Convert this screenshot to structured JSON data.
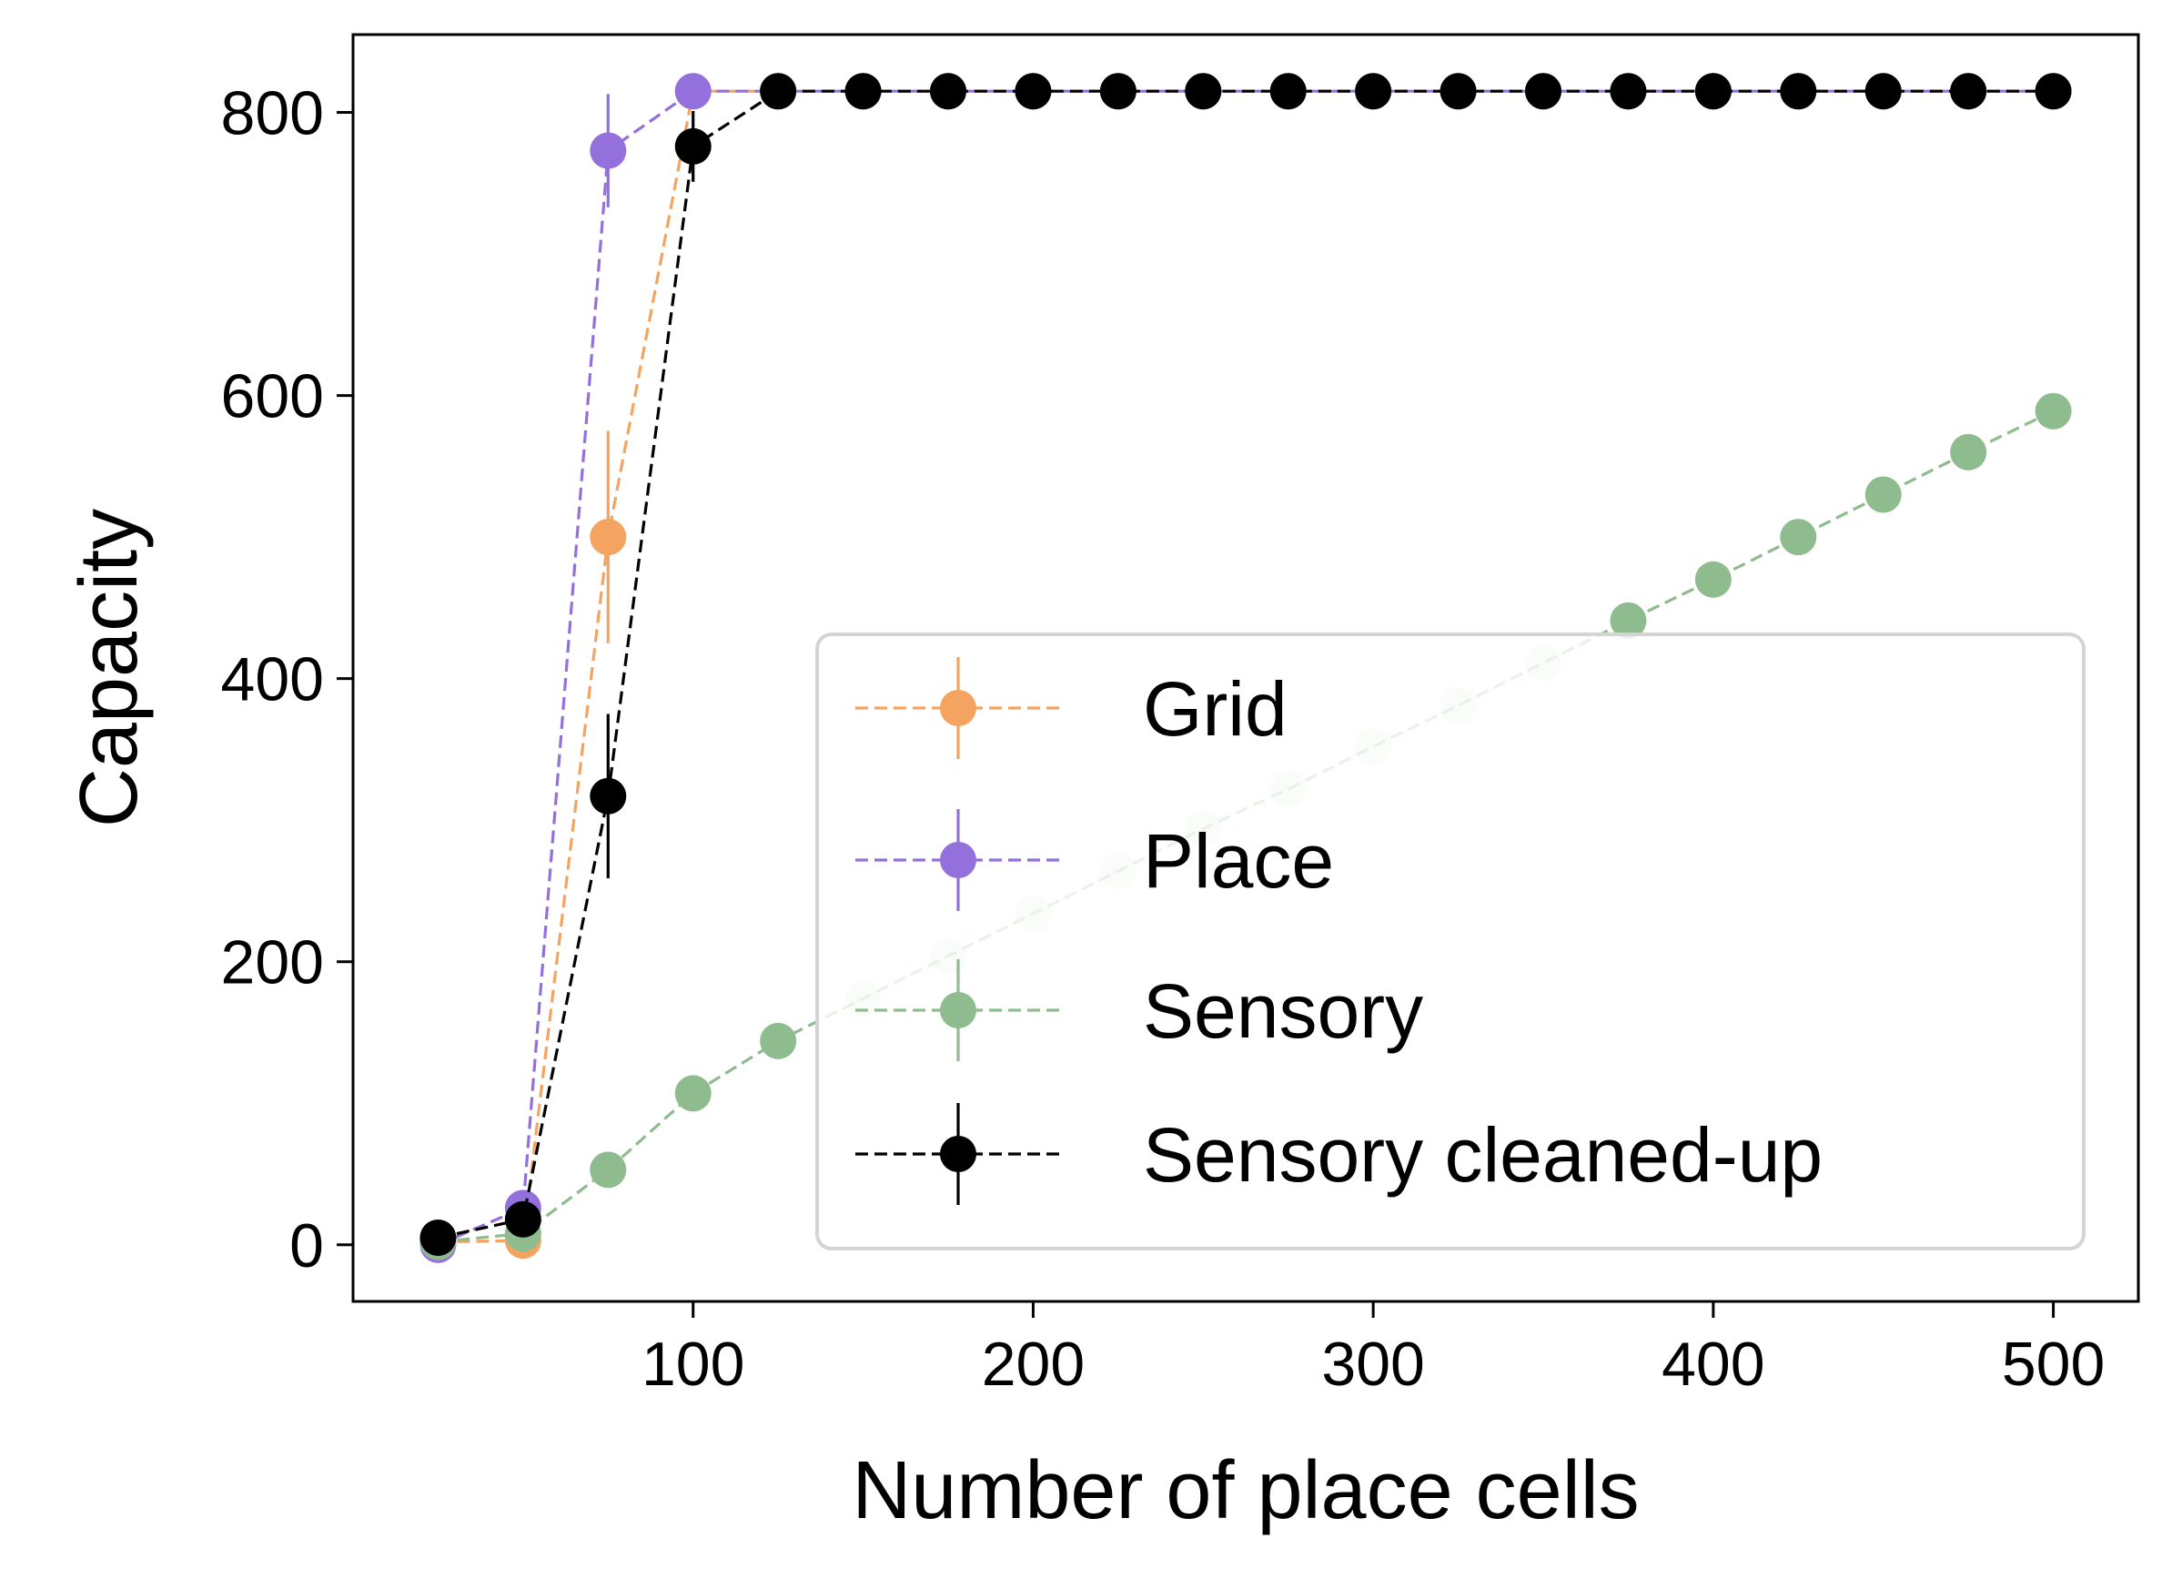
{
  "chart_data": {
    "type": "line",
    "title": "",
    "xlabel": "Number of place cells",
    "ylabel": "Capacity",
    "xlim": [
      0,
      525
    ],
    "ylim": [
      -40,
      855
    ],
    "xticks": [
      100,
      200,
      300,
      400,
      500
    ],
    "yticks": [
      0,
      200,
      400,
      600,
      800
    ],
    "grid": false,
    "legend_position": "lower-right",
    "series": [
      {
        "name": "Grid",
        "color": "#F4A460",
        "x": [
          25,
          50,
          75,
          100,
          125,
          150,
          175,
          200,
          225,
          250,
          275,
          300,
          325,
          350,
          375,
          400,
          425,
          450,
          475,
          500
        ],
        "y": [
          2,
          3,
          500,
          815,
          815,
          815,
          815,
          815,
          815,
          815,
          815,
          815,
          815,
          815,
          815,
          815,
          815,
          815,
          815,
          815
        ],
        "err": [
          0,
          0,
          75,
          0,
          0,
          0,
          0,
          0,
          0,
          0,
          0,
          0,
          0,
          0,
          0,
          0,
          0,
          0,
          0,
          0
        ]
      },
      {
        "name": "Place",
        "color": "#9370DB",
        "x": [
          25,
          50,
          75,
          100,
          125,
          150,
          175,
          200,
          225,
          250,
          275,
          300,
          325,
          350,
          375,
          400,
          425,
          450,
          475,
          500
        ],
        "y": [
          0,
          26,
          773,
          815,
          815,
          815,
          815,
          815,
          815,
          815,
          815,
          815,
          815,
          815,
          815,
          815,
          815,
          815,
          815,
          815
        ],
        "err": [
          0,
          8,
          40,
          0,
          0,
          0,
          0,
          0,
          0,
          0,
          0,
          0,
          0,
          0,
          0,
          0,
          0,
          0,
          0,
          0
        ]
      },
      {
        "name": "Sensory",
        "color": "#8FBC8F",
        "x": [
          25,
          50,
          75,
          100,
          125,
          150,
          175,
          200,
          225,
          250,
          275,
          300,
          325,
          350,
          375,
          400,
          425,
          450,
          475,
          500
        ],
        "y": [
          2,
          8,
          53,
          107,
          144,
          174,
          204,
          234,
          264,
          294,
          322,
          352,
          381,
          411,
          441,
          470,
          500,
          530,
          560,
          589
        ],
        "err": [
          0,
          0,
          0,
          0,
          0,
          0,
          0,
          0,
          0,
          0,
          0,
          0,
          0,
          0,
          0,
          0,
          0,
          0,
          0,
          0
        ]
      },
      {
        "name": "Sensory cleaned-up",
        "color": "#000000",
        "x": [
          25,
          50,
          75,
          100,
          125,
          150,
          175,
          200,
          225,
          250,
          275,
          300,
          325,
          350,
          375,
          400,
          425,
          450,
          475,
          500
        ],
        "y": [
          5,
          18,
          317,
          776,
          815,
          815,
          815,
          815,
          815,
          815,
          815,
          815,
          815,
          815,
          815,
          815,
          815,
          815,
          815,
          815
        ],
        "err": [
          0,
          0,
          58,
          25,
          0,
          0,
          0,
          0,
          0,
          0,
          0,
          0,
          0,
          0,
          0,
          0,
          0,
          0,
          0,
          0
        ]
      }
    ]
  }
}
